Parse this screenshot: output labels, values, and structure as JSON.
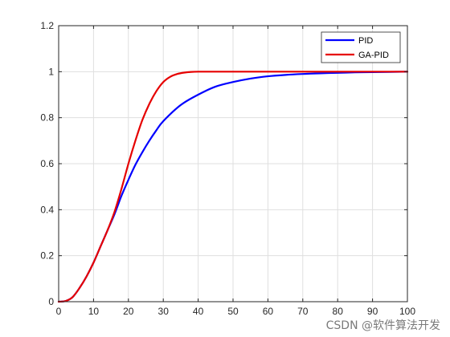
{
  "chart_data": {
    "type": "line",
    "title": "",
    "xlabel": "",
    "ylabel": "",
    "xlim": [
      0,
      100
    ],
    "ylim": [
      0,
      1.2
    ],
    "xticks": [
      0,
      10,
      20,
      30,
      40,
      50,
      60,
      70,
      80,
      90,
      100
    ],
    "yticks": [
      0,
      0.2,
      0.4,
      0.6,
      0.8,
      1,
      1.2
    ],
    "xtick_labels": [
      "0",
      "10",
      "20",
      "30",
      "40",
      "50",
      "60",
      "70",
      "80",
      "90",
      "100"
    ],
    "ytick_labels": [
      "0",
      "0.2",
      "0.4",
      "0.6",
      "0.8",
      "1",
      "1.2"
    ],
    "grid": true,
    "legend_position": "top-right",
    "series": [
      {
        "name": "PID",
        "color": "#0000ff",
        "x": [
          0,
          2,
          4,
          6,
          8,
          10,
          12,
          14,
          16,
          18,
          20,
          22,
          24,
          26,
          28,
          30,
          35,
          40,
          45,
          50,
          55,
          60,
          65,
          70,
          75,
          80,
          85,
          90,
          95,
          100
        ],
        "y": [
          0,
          0.003,
          0.02,
          0.06,
          0.11,
          0.17,
          0.24,
          0.31,
          0.38,
          0.46,
          0.53,
          0.595,
          0.65,
          0.7,
          0.745,
          0.785,
          0.855,
          0.9,
          0.935,
          0.955,
          0.97,
          0.98,
          0.986,
          0.99,
          0.993,
          0.995,
          0.997,
          0.998,
          0.999,
          1.0
        ]
      },
      {
        "name": "GA-PID",
        "color": "#e60000",
        "x": [
          0,
          2,
          4,
          6,
          8,
          10,
          12,
          14,
          16,
          18,
          20,
          22,
          24,
          26,
          28,
          30,
          32,
          34,
          36,
          38,
          40,
          45,
          50,
          60,
          70,
          80,
          90,
          100
        ],
        "y": [
          0,
          0.003,
          0.02,
          0.06,
          0.11,
          0.17,
          0.24,
          0.31,
          0.39,
          0.49,
          0.6,
          0.7,
          0.79,
          0.86,
          0.915,
          0.955,
          0.978,
          0.99,
          0.996,
          0.999,
          1.0,
          1.0,
          1.0,
          1.0,
          1.0,
          1.0,
          1.0,
          1.0
        ]
      }
    ]
  },
  "watermark": "CSDN @软件算法开发"
}
